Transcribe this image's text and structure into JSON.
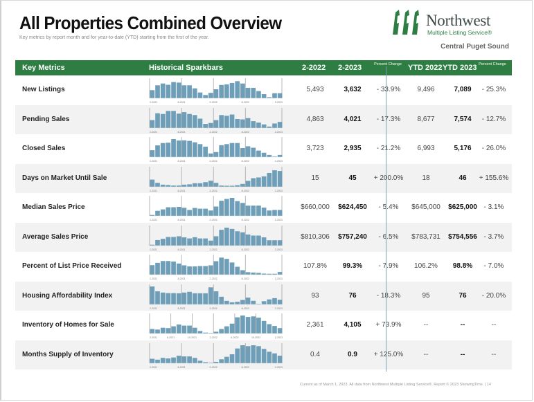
{
  "header": {
    "title": "All Properties Combined Overview",
    "subtitle": "Key metrics by report month and for year-to-date (YTD) starting from the first of the year.",
    "logo_name": "Northwest",
    "logo_sub": "Multiple Listing Service®",
    "region": "Central Puget Sound",
    "brand_color": "#2e7d42"
  },
  "table": {
    "columns": {
      "metric": "Key Metrics",
      "sparkbars": "Historical Sparkbars",
      "prev": "2-2022",
      "curr": "2-2023",
      "pct": "Percent Change",
      "ytd_prev": "YTD 2022",
      "ytd_curr": "YTD 2023",
      "ytd_pct": "Percent Change"
    },
    "rows": [
      {
        "label": "New Listings",
        "prev": "5,493",
        "curr": "3,632",
        "pct": "- 33.9%",
        "ytd_prev": "9,496",
        "ytd_curr": "7,089",
        "ytd_pct": "- 25.3%"
      },
      {
        "label": "Pending Sales",
        "prev": "4,863",
        "curr": "4,021",
        "pct": "- 17.3%",
        "ytd_prev": "8,677",
        "ytd_curr": "7,574",
        "ytd_pct": "- 12.7%"
      },
      {
        "label": "Closed Sales",
        "prev": "3,723",
        "curr": "2,935",
        "pct": "- 21.2%",
        "ytd_prev": "6,993",
        "ytd_curr": "5,176",
        "ytd_pct": "- 26.0%"
      },
      {
        "label": "Days on Market Until Sale",
        "prev": "15",
        "curr": "45",
        "pct": "+ 200.0%",
        "ytd_prev": "18",
        "ytd_curr": "46",
        "ytd_pct": "+ 155.6%"
      },
      {
        "label": "Median Sales Price",
        "prev": "$660,000",
        "curr": "$624,450",
        "pct": "- 5.4%",
        "ytd_prev": "$645,000",
        "ytd_curr": "$625,000",
        "ytd_pct": "- 3.1%"
      },
      {
        "label": "Average Sales Price",
        "prev": "$810,306",
        "curr": "$757,240",
        "pct": "- 6.5%",
        "ytd_prev": "$783,731",
        "ytd_curr": "$754,556",
        "ytd_pct": "- 3.7%"
      },
      {
        "label": "Percent of List Price Received",
        "prev": "107.8%",
        "curr": "99.3%",
        "pct": "- 7.9%",
        "ytd_prev": "106.2%",
        "ytd_curr": "98.8%",
        "ytd_pct": "- 7.0%"
      },
      {
        "label": "Housing Affordability Index",
        "prev": "93",
        "curr": "76",
        "pct": "- 18.3%",
        "ytd_prev": "95",
        "ytd_curr": "76",
        "ytd_pct": "- 20.0%"
      },
      {
        "label": "Inventory of Homes for Sale",
        "prev": "2,361",
        "curr": "4,105",
        "pct": "+ 73.9%",
        "ytd_prev": "--",
        "ytd_curr": "--",
        "ytd_pct": "--"
      },
      {
        "label": "Months Supply of Inventory",
        "prev": "0.4",
        "curr": "0.9",
        "pct": "+ 125.0%",
        "ytd_prev": "--",
        "ytd_curr": "--",
        "ytd_pct": "--"
      }
    ]
  },
  "chart_data": {
    "type": "bar",
    "title": "Historical Sparkbars",
    "bar_color": "#6f9fb8",
    "x": [
      "2-2021",
      "3-2021",
      "4-2021",
      "5-2021",
      "6-2021",
      "7-2021",
      "8-2021",
      "9-2021",
      "10-2021",
      "11-2021",
      "12-2021",
      "1-2022",
      "2-2022",
      "3-2022",
      "4-2022",
      "5-2022",
      "6-2022",
      "7-2022",
      "8-2022",
      "9-2022",
      "10-2022",
      "11-2022",
      "12-2022",
      "1-2023",
      "2-2023"
    ],
    "series": [
      {
        "name": "New Listings",
        "ticks": [
          "2-2021",
          "8-2021",
          "2-2022",
          "8-2022",
          "2-2023"
        ],
        "tick_index": [
          0,
          6,
          12,
          18,
          24
        ],
        "values": [
          45,
          72,
          82,
          75,
          90,
          87,
          72,
          72,
          55,
          32,
          18,
          30,
          50,
          74,
          77,
          85,
          95,
          82,
          58,
          58,
          40,
          23,
          6,
          28,
          28
        ]
      },
      {
        "name": "Pending Sales",
        "ticks": [
          "2-2021",
          "8-2021",
          "2-2022",
          "8-2022",
          "2-2023"
        ],
        "tick_index": [
          0,
          6,
          12,
          18,
          24
        ],
        "values": [
          44,
          82,
          78,
          95,
          95,
          80,
          88,
          78,
          72,
          52,
          23,
          28,
          44,
          72,
          68,
          75,
          50,
          48,
          55,
          38,
          30,
          20,
          8,
          25,
          34
        ]
      },
      {
        "name": "Closed Sales",
        "ticks": [
          "2-2021",
          "8-2021",
          "2-2022",
          "8-2022",
          "2-2023"
        ],
        "tick_index": [
          0,
          6,
          12,
          18,
          24
        ],
        "values": [
          38,
          65,
          78,
          80,
          100,
          92,
          93,
          90,
          82,
          72,
          58,
          20,
          28,
          66,
          72,
          78,
          78,
          50,
          60,
          52,
          36,
          24,
          12,
          2,
          12
        ]
      },
      {
        "name": "Days on Market Until Sale",
        "ticks": [
          "2-2021",
          "8-2021",
          "2-2022",
          "8-2022",
          "2-2023"
        ],
        "tick_index": [
          0,
          6,
          12,
          18,
          24
        ],
        "values": [
          40,
          22,
          12,
          10,
          7,
          7,
          12,
          14,
          20,
          20,
          26,
          34,
          22,
          7,
          6,
          6,
          9,
          16,
          33,
          48,
          52,
          58,
          77,
          92,
          88
        ]
      },
      {
        "name": "Median Sales Price",
        "ticks": [
          "2-2021",
          "8-2021",
          "2-2022",
          "8-2022",
          "2-2023"
        ],
        "tick_index": [
          0,
          6,
          12,
          18,
          24
        ],
        "values": [
          5,
          28,
          36,
          48,
          48,
          50,
          45,
          33,
          44,
          40,
          40,
          30,
          52,
          84,
          94,
          100,
          82,
          72,
          57,
          57,
          57,
          46,
          30,
          33,
          33
        ]
      },
      {
        "name": "Average Sales Price",
        "ticks": [
          "2-2021",
          "8-2021",
          "2-2022",
          "8-2022",
          "2-2023"
        ],
        "tick_index": [
          0,
          6,
          12,
          18,
          24
        ],
        "values": [
          5,
          31,
          38,
          48,
          48,
          52,
          46,
          40,
          47,
          40,
          40,
          28,
          52,
          88,
          100,
          93,
          80,
          74,
          62,
          56,
          56,
          46,
          30,
          30,
          30
        ]
      },
      {
        "name": "Percent of List Price Received",
        "ticks": [
          "2-2021",
          "8-2021",
          "2-2022",
          "8-2022",
          "2-2023"
        ],
        "tick_index": [
          0,
          6,
          12,
          18,
          24
        ],
        "values": [
          53,
          66,
          76,
          76,
          73,
          62,
          52,
          46,
          46,
          48,
          48,
          52,
          75,
          95,
          88,
          68,
          44,
          25,
          14,
          12,
          10,
          6,
          5,
          5,
          15
        ]
      },
      {
        "name": "Housing Affordability Index",
        "ticks": [
          "2-2021",
          "8-2021",
          "2-2022",
          "8-2022",
          "2-2023"
        ],
        "tick_index": [
          0,
          6,
          12,
          18,
          24
        ],
        "values": [
          100,
          73,
          66,
          63,
          63,
          62,
          66,
          70,
          62,
          62,
          62,
          95,
          73,
          43,
          20,
          12,
          15,
          25,
          38,
          20,
          3,
          18,
          28,
          35,
          26
        ]
      },
      {
        "name": "Inventory of Homes for Sale",
        "ticks": [
          "2-2021",
          "6-2021",
          "10-2021",
          "2-2022",
          "6-2022",
          "10-2022",
          "2-2023"
        ],
        "tick_index": [
          0,
          4,
          8,
          12,
          16,
          20,
          24
        ],
        "values": [
          25,
          22,
          32,
          30,
          40,
          50,
          44,
          44,
          32,
          14,
          5,
          3,
          10,
          25,
          40,
          55,
          90,
          100,
          92,
          95,
          88,
          70,
          52,
          42,
          30
        ]
      },
      {
        "name": "Months Supply of Inventory",
        "ticks": [
          "2-2021",
          "8-2021",
          "2-2022",
          "8-2022",
          "2-2023"
        ],
        "tick_index": [
          0,
          6,
          12,
          18,
          24
        ],
        "values": [
          25,
          20,
          30,
          27,
          32,
          42,
          38,
          38,
          30,
          14,
          6,
          3,
          8,
          22,
          36,
          50,
          82,
          100,
          95,
          100,
          95,
          80,
          64,
          55,
          42
        ]
      }
    ]
  },
  "footer": {
    "text": "Current as of March 1, 2023. All data from Northwest Multiple Listing Service®. Report © 2023 ShowingTime.  |  14"
  }
}
